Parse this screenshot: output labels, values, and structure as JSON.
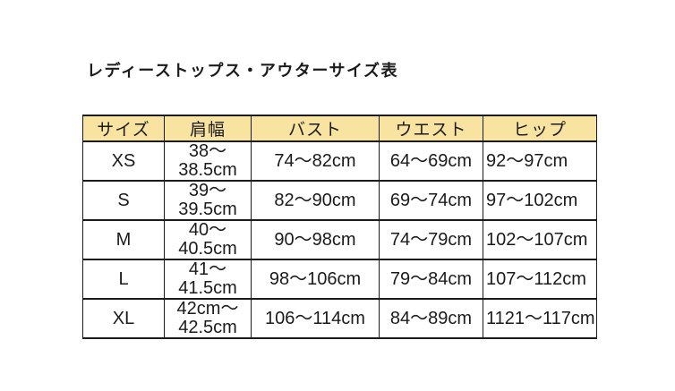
{
  "page": {
    "title": "レディーストップス・アウターサイズ表"
  },
  "size_table": {
    "headers": [
      "サイズ",
      "肩幅",
      "バスト",
      "ウエスト",
      "ヒップ"
    ],
    "rows": [
      {
        "size": "XS",
        "shoulder": "38〜\n38.5cm",
        "bust": "74〜82cm",
        "waist": "64〜69cm",
        "hip": "92〜97cm"
      },
      {
        "size": "S",
        "shoulder": "39〜\n39.5cm",
        "bust": "82〜90cm",
        "waist": "69〜74cm",
        "hip": "97〜102cm"
      },
      {
        "size": "M",
        "shoulder": "40〜\n40.5cm",
        "bust": "90〜98cm",
        "waist": "74〜79cm",
        "hip": "102〜107cm"
      },
      {
        "size": "L",
        "shoulder": "41〜\n41.5cm",
        "bust": "98〜106cm",
        "waist": "79〜84cm",
        "hip": "107〜112cm"
      },
      {
        "size": "XL",
        "shoulder": "42cm〜\n42.5cm",
        "bust": "106〜114cm",
        "waist": "84〜89cm",
        "hip": "1121〜117cm"
      }
    ],
    "colors": {
      "header_background": "#F8E3A0",
      "border": "#1B1B1B",
      "text": "#1B1B1B",
      "page_background": "#FFFFFF"
    }
  }
}
